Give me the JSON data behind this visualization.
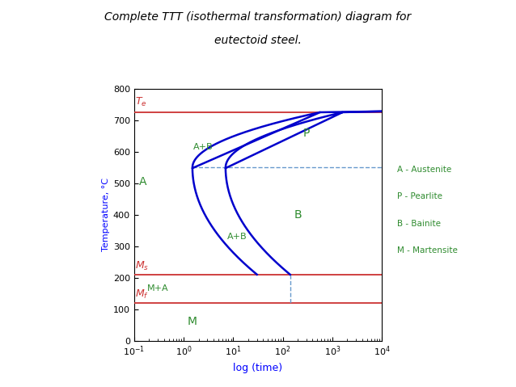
{
  "title_line1": "Complete TTT (isothermal transformation) diagram for",
  "title_line2": "eutectoid steel.",
  "xlabel": "log (time)",
  "ylabel": "Temperature, °C",
  "Te": 727,
  "Ms": 210,
  "Mf": 120,
  "ylim": [
    0,
    800
  ],
  "xlim_log10_min": -1,
  "xlim_log10_max": 4,
  "label_color": "#2e8b2e",
  "curve_color": "#0000cc",
  "hline_color": "#cc3333",
  "dashed_color": "#6699cc",
  "background": "#ffffff",
  "legend_items": [
    "A - Austenite",
    "P - Pearlite",
    "B - Bainite",
    "M - Martensite"
  ]
}
